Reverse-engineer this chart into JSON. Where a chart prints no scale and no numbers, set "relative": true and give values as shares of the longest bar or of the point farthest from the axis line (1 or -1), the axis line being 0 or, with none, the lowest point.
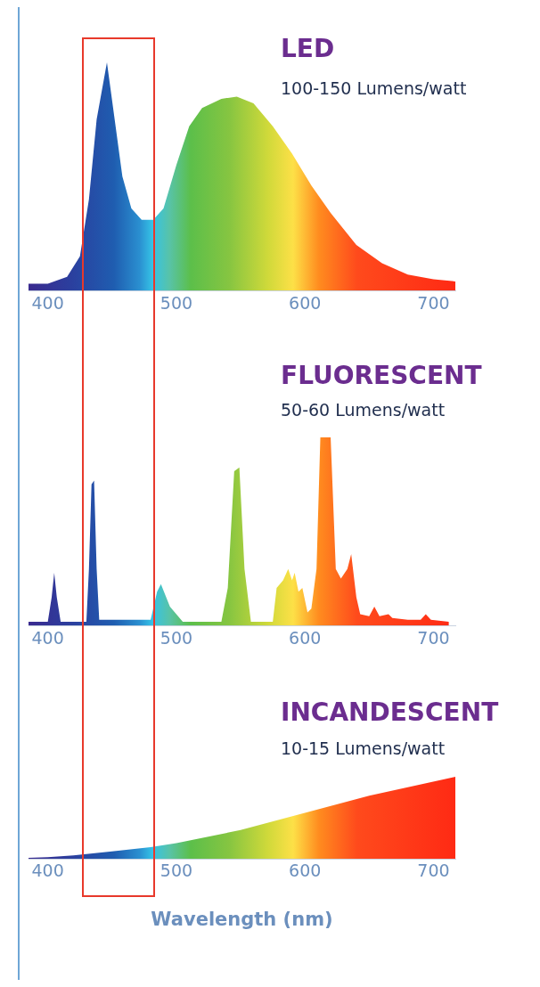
{
  "chart_data": [
    {
      "type": "area",
      "title": "LED",
      "subtitle": "100-150 Lumens/watt",
      "relative": true,
      "xlim": [
        385,
        717
      ],
      "xticks": [
        400,
        500,
        600,
        700
      ],
      "series": [
        {
          "x": [
            385,
            400,
            415,
            425,
            432,
            438,
            446,
            452,
            458,
            465,
            473,
            482,
            490,
            500,
            510,
            520,
            535,
            547,
            560,
            575,
            590,
            605,
            620,
            640,
            660,
            680,
            700,
            717
          ],
          "values": [
            0.03,
            0.03,
            0.06,
            0.15,
            0.4,
            0.75,
            1,
            0.75,
            0.5,
            0.36,
            0.31,
            0.31,
            0.36,
            0.55,
            0.72,
            0.8,
            0.84,
            0.85,
            0.82,
            0.72,
            0.6,
            0.46,
            0.34,
            0.2,
            0.12,
            0.07,
            0.05,
            0.04
          ]
        }
      ]
    },
    {
      "type": "area",
      "title": "FLUORESCENT",
      "subtitle": "50-60 Lumens/watt",
      "relative": true,
      "xlim": [
        385,
        717
      ],
      "xticks": [
        400,
        500,
        600,
        700
      ],
      "series": [
        {
          "x": [
            385,
            400,
            403,
            405,
            407,
            410,
            430,
            432,
            434,
            436,
            438,
            440,
            480,
            485,
            488,
            495,
            505,
            535,
            540,
            545,
            549,
            553,
            558,
            575,
            578,
            583,
            587,
            590,
            592,
            595,
            598,
            602,
            605,
            609,
            612,
            620,
            624,
            628,
            633,
            636,
            640,
            643,
            650,
            654,
            658,
            665,
            668,
            680,
            690,
            694,
            698,
            712
          ],
          "values": [
            0.02,
            0.02,
            0.15,
            0.28,
            0.15,
            0.02,
            0.02,
            0.3,
            0.75,
            0.77,
            0.3,
            0.03,
            0.03,
            0.18,
            0.22,
            0.1,
            0.02,
            0.02,
            0.2,
            0.82,
            0.84,
            0.3,
            0.02,
            0.02,
            0.2,
            0.24,
            0.3,
            0.24,
            0.28,
            0.18,
            0.2,
            0.07,
            0.09,
            0.3,
            1,
            1,
            0.3,
            0.25,
            0.3,
            0.38,
            0.15,
            0.06,
            0.05,
            0.1,
            0.05,
            0.06,
            0.04,
            0.03,
            0.03,
            0.06,
            0.03,
            0.02
          ]
        }
      ]
    },
    {
      "type": "area",
      "title": "INCANDESCENT",
      "subtitle": "10-15 Lumens/watt",
      "xlabel": "Wavelength (nm)",
      "relative": true,
      "xlim": [
        385,
        717
      ],
      "xticks": [
        400,
        500,
        600,
        700
      ],
      "series": [
        {
          "x": [
            385,
            400,
            420,
            450,
            480,
            500,
            550,
            600,
            650,
            717
          ],
          "values": [
            0.01,
            0.02,
            0.04,
            0.09,
            0.14,
            0.19,
            0.35,
            0.56,
            0.77,
            1
          ]
        }
      ]
    }
  ]
}
